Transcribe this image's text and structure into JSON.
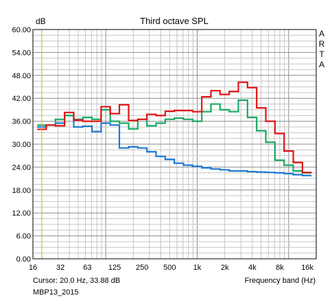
{
  "chart_data": {
    "type": "line",
    "step": true,
    "title": "Third octave SPL",
    "ylabel": "dB",
    "xlabel": "Frequency band (Hz)",
    "x_scale": "log",
    "xlim": [
      16,
      20000
    ],
    "ylim": [
      0,
      60
    ],
    "yticks": [
      "0.00",
      "6.00",
      "12.00",
      "18.00",
      "24.00",
      "30.00",
      "36.00",
      "42.00",
      "48.00",
      "54.00",
      "60.00"
    ],
    "xtick_values": [
      16,
      32,
      63,
      125,
      250,
      500,
      1000,
      2000,
      4000,
      8000,
      16000
    ],
    "xtick_labels": [
      "16",
      "32",
      "63",
      "125",
      "250",
      "500",
      "1k",
      "2k",
      "4k",
      "8k",
      "16k"
    ],
    "band_edges": [
      17.8,
      22.4,
      28.2,
      35.5,
      44.7,
      56.2,
      70.8,
      89.1,
      112,
      141,
      178,
      224,
      282,
      355,
      447,
      562,
      708,
      891,
      1122,
      1413,
      1778,
      2239,
      2818,
      3548,
      4467,
      5623,
      7079,
      8913,
      11220,
      14125,
      17783
    ],
    "series": [
      {
        "color": "#1a78d2",
        "values": [
          34.5,
          35.0,
          35.5,
          37.5,
          34.5,
          34.7,
          33.3,
          35.5,
          35.0,
          29.0,
          29.3,
          29.0,
          28.0,
          26.8,
          26.0,
          25.0,
          24.5,
          24.2,
          23.8,
          23.5,
          23.3,
          23.0,
          23.0,
          22.8,
          22.7,
          22.6,
          22.5,
          22.3,
          22.0,
          21.8
        ]
      },
      {
        "color": "#18a860",
        "values": [
          35.0,
          35.0,
          36.5,
          37.5,
          36.5,
          37.0,
          36.5,
          39.0,
          36.0,
          35.5,
          34.0,
          36.5,
          34.8,
          35.5,
          36.5,
          36.8,
          36.5,
          36.0,
          38.5,
          40.5,
          39.0,
          38.5,
          41.5,
          37.0,
          33.5,
          30.5,
          25.8,
          24.5,
          23.0,
          22.5
        ]
      },
      {
        "color": "#e01414",
        "values": [
          33.9,
          35.0,
          34.8,
          38.3,
          36.3,
          36.0,
          36.0,
          39.8,
          38.0,
          40.3,
          36.2,
          36.5,
          37.8,
          37.5,
          38.6,
          38.8,
          38.8,
          38.5,
          42.4,
          44.0,
          43.0,
          43.8,
          46.2,
          44.8,
          39.5,
          36.0,
          32.8,
          28.2,
          25.2,
          22.6
        ]
      }
    ],
    "cursor": {
      "x": 20.0,
      "color": "#d8c020"
    },
    "side_text": [
      "A",
      "R",
      "T",
      "A"
    ],
    "cursor_readout": "Cursor:   20.0 Hz, 33.88 dB",
    "file_label": "MBP13_2015",
    "grid": true
  }
}
